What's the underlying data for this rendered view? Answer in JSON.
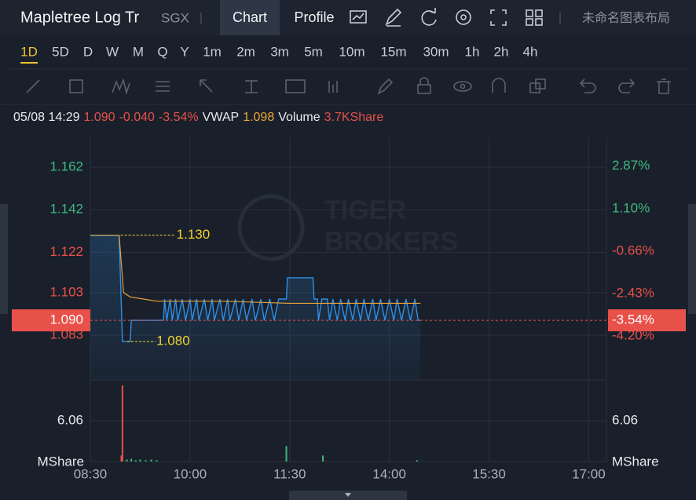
{
  "header": {
    "title": "Mapletree Log Tr",
    "exchange": "SGX",
    "tabs": [
      "Chart",
      "Profile"
    ],
    "layout_name": "未命名图表布局"
  },
  "periods": {
    "items": [
      "1D",
      "5D",
      "D",
      "W",
      "M",
      "Q",
      "Y",
      "1m",
      "2m",
      "3m",
      "5m",
      "10m",
      "15m",
      "30m",
      "1h",
      "2h",
      "4h"
    ]
  },
  "info": {
    "datetime": "05/08 14:29",
    "price": "1.090",
    "change": "-0.040",
    "change_pct": "-3.54%",
    "vwap_label": "VWAP",
    "vwap": "1.098",
    "volume_label": "Volume",
    "volume": "3.7KShare"
  },
  "chart_data": {
    "type": "line",
    "watermark": [
      "TIGER",
      "BROKERS"
    ],
    "xlim": [
      0,
      466
    ],
    "xticks": [
      {
        "value": 0,
        "label": "08:30"
      },
      {
        "value": 90,
        "label": "10:00"
      },
      {
        "value": 180,
        "label": "11:30"
      },
      {
        "value": 270,
        "label": "14:00"
      },
      {
        "value": 360,
        "label": "15:30"
      },
      {
        "value": 450,
        "label": "17:00"
      }
    ],
    "ylim": [
      1.062,
      1.176
    ],
    "yticks": [
      {
        "value": 1.162,
        "label": "1.162"
      },
      {
        "value": 1.142,
        "label": "1.142"
      },
      {
        "value": 1.122,
        "label": "1.122"
      },
      {
        "value": 1.103,
        "label": "1.103"
      },
      {
        "value": 1.083,
        "label": "1.083"
      }
    ],
    "y2lim": [
      -6.02,
      4.07
    ],
    "y2ticks": [
      {
        "value": 2.87,
        "label": "2.87%"
      },
      {
        "value": 1.1,
        "label": "1.10%"
      },
      {
        "value": -0.66,
        "label": "-0.66%"
      },
      {
        "value": -2.43,
        "label": "-2.43%"
      },
      {
        "value": -4.2,
        "label": "-4.20%"
      }
    ],
    "up_color": "#3db87f",
    "down_color": "#e8504a",
    "last_price": {
      "value": 1.09,
      "label": "1.090"
    },
    "last_pct": {
      "value": -3.54,
      "label": "-3.54%"
    },
    "high": {
      "x": 26,
      "value": 1.13,
      "label": "1.130"
    },
    "low": {
      "x": 32,
      "value": 1.08,
      "label": "1.080"
    },
    "series": [
      {
        "color": "#2f8fe6",
        "x": [
          0,
          26,
          29,
          36,
          37,
          66,
          67,
          69,
          72,
          74,
          77,
          79,
          83,
          86,
          90,
          92,
          96,
          98,
          103,
          106,
          110,
          112,
          117,
          120,
          124,
          126,
          131,
          134,
          138,
          141,
          146,
          149,
          154,
          157,
          162,
          166,
          170,
          177,
          178,
          201,
          202,
          205,
          206,
          209,
          214,
          216,
          219,
          223,
          226,
          230,
          233,
          237,
          240,
          244,
          247,
          251,
          255,
          258,
          262,
          266,
          270,
          274,
          277,
          281,
          285,
          289,
          293,
          296,
          298
        ],
        "values": [
          1.13,
          1.13,
          1.08,
          1.08,
          1.09,
          1.09,
          1.1,
          1.09,
          1.1,
          1.09,
          1.1,
          1.09,
          1.1,
          1.09,
          1.1,
          1.09,
          1.1,
          1.09,
          1.1,
          1.09,
          1.1,
          1.09,
          1.1,
          1.09,
          1.1,
          1.09,
          1.1,
          1.09,
          1.1,
          1.09,
          1.1,
          1.09,
          1.1,
          1.09,
          1.1,
          1.09,
          1.1,
          1.1,
          1.11,
          1.11,
          1.1,
          1.1,
          1.09,
          1.1,
          1.1,
          1.09,
          1.1,
          1.09,
          1.1,
          1.09,
          1.1,
          1.09,
          1.1,
          1.09,
          1.1,
          1.09,
          1.1,
          1.09,
          1.1,
          1.09,
          1.1,
          1.09,
          1.1,
          1.09,
          1.1,
          1.09,
          1.1,
          1.09,
          1.09
        ]
      },
      {
        "color": "#e8a23a",
        "x": [
          0,
          26,
          30,
          36,
          60,
          120,
          180,
          240,
          298
        ],
        "values": [
          1.13,
          1.13,
          1.103,
          1.101,
          1.099,
          1.099,
          1.098,
          1.098,
          1.098
        ]
      }
    ],
    "volume": {
      "unit": "MShare",
      "ylim": [
        0,
        12.12
      ],
      "yticks": [
        6.06
      ],
      "x": [
        28,
        29,
        33,
        37,
        41,
        45,
        50,
        55,
        60,
        177,
        210,
        295
      ],
      "values": [
        0.9,
        11.3,
        0.3,
        0.4,
        0.2,
        0.3,
        0.2,
        0.3,
        0.2,
        2.3,
        0.9,
        0.2
      ],
      "colors": [
        "#e8504a",
        "#e8504a",
        "#3db87f",
        "#3db87f",
        "#3db87f",
        "#3db87f",
        "#3db87f",
        "#3db87f",
        "#3db87f",
        "#3db87f",
        "#3db87f",
        "#3db87f"
      ]
    }
  }
}
